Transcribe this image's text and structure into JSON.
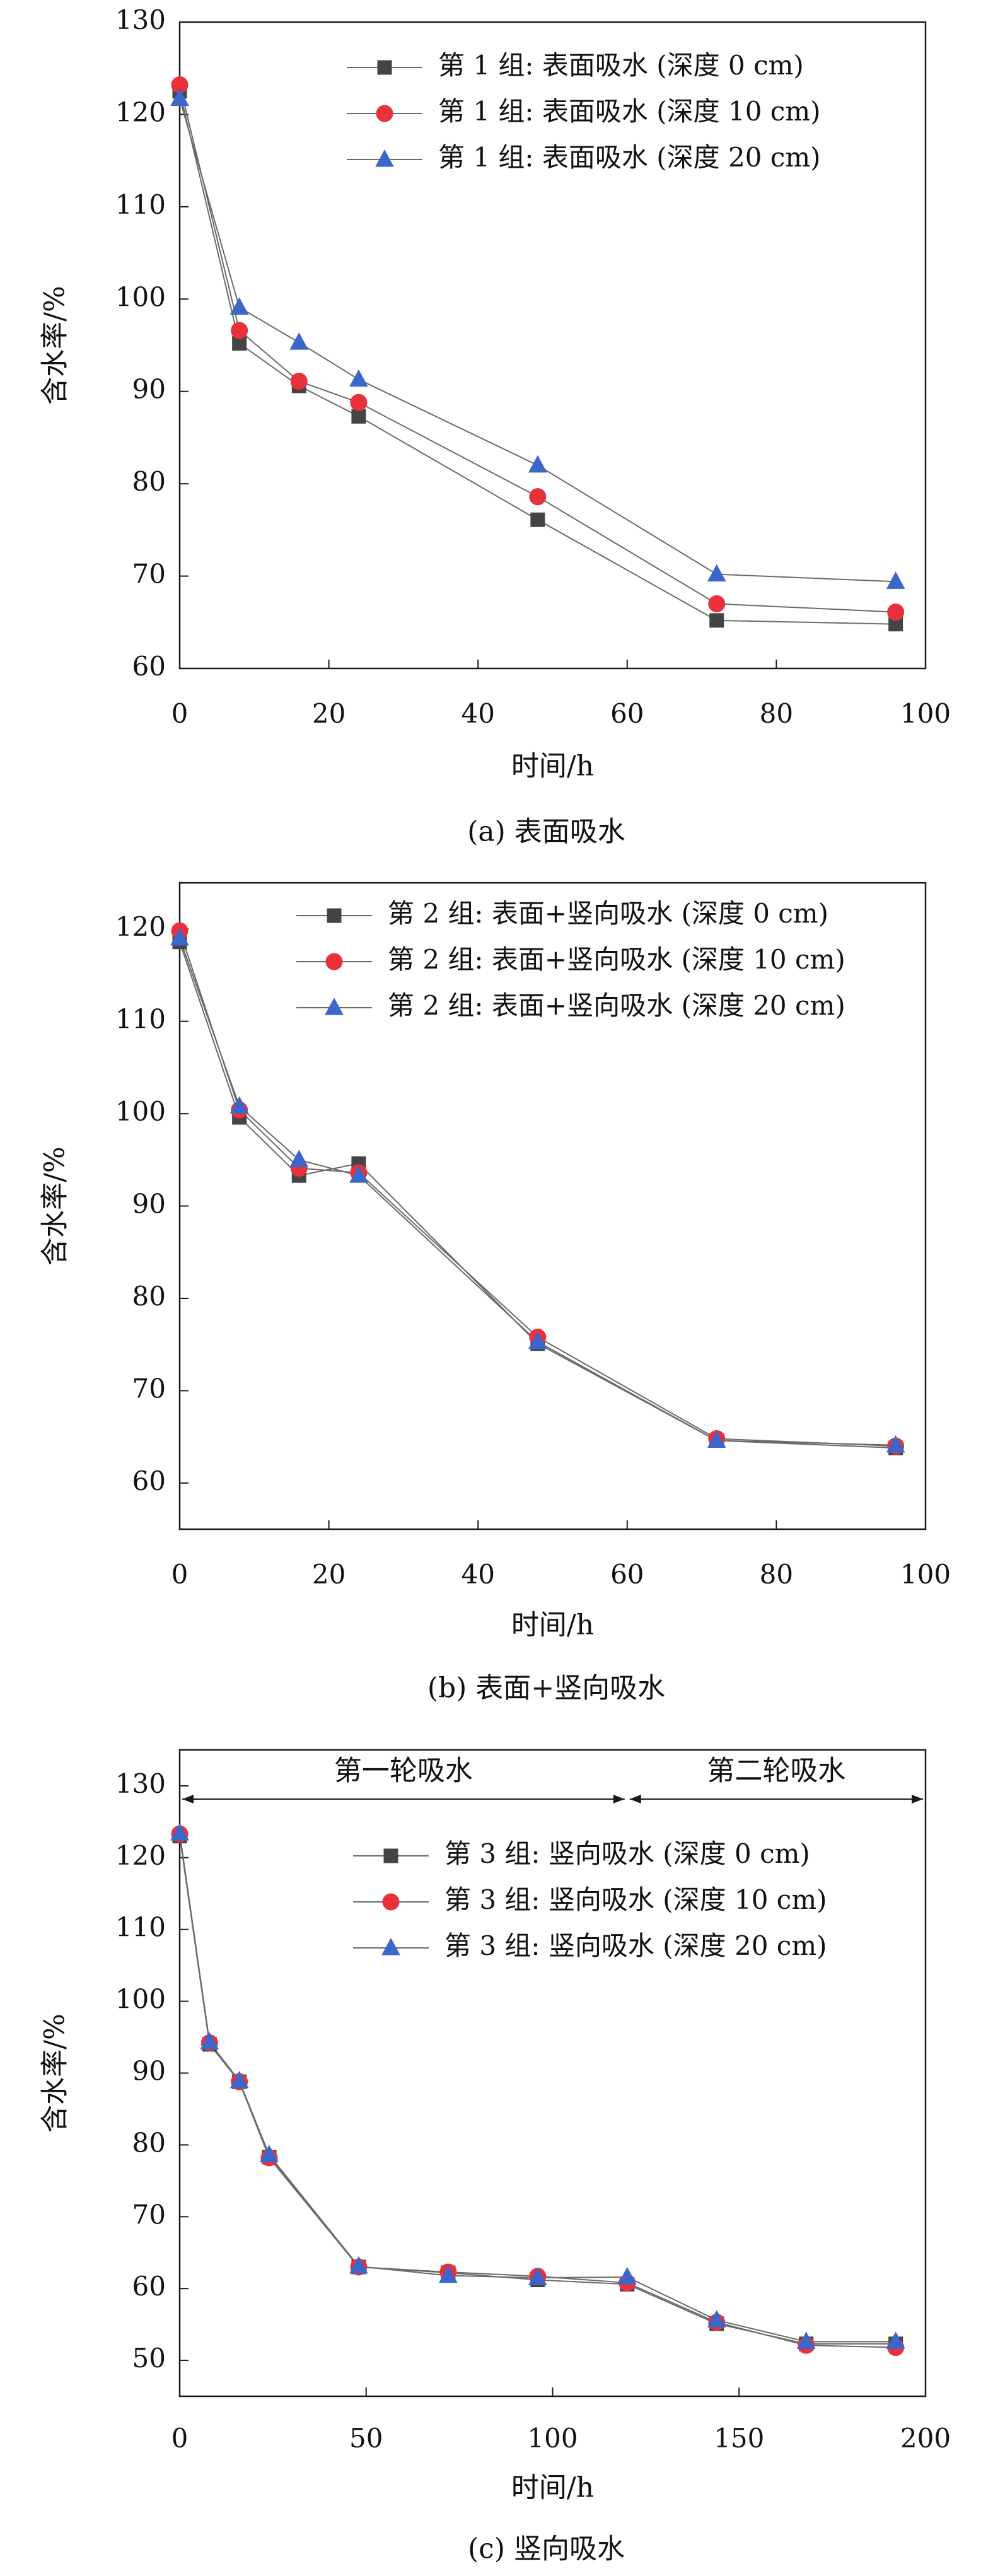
{
  "colors": {
    "series": [
      "#444444",
      "#e8313b",
      "#3a67c9"
    ],
    "line": "#6a6a6a",
    "axis": "#1a1a1a"
  },
  "chart_data": [
    {
      "type": "line",
      "caption": "(a) 表面吸水",
      "xlabel": "时间/h",
      "ylabel": "含水率/%",
      "xlim": [
        0,
        100
      ],
      "ylim": [
        60,
        130
      ],
      "xticks": [
        0,
        20,
        40,
        60,
        80,
        100
      ],
      "yticks": [
        60,
        70,
        80,
        90,
        100,
        110,
        120,
        130
      ],
      "legend_position": "top-right",
      "x": [
        0,
        8,
        16,
        24,
        48,
        72,
        96
      ],
      "series": [
        {
          "name": "第 1 组: 表面吸水 (深度 0 cm)",
          "marker": "square",
          "values": [
            122.5,
            95.2,
            90.6,
            87.3,
            76.1,
            65.2,
            64.8
          ]
        },
        {
          "name": "第 1 组: 表面吸水 (深度 10 cm)",
          "marker": "circle",
          "values": [
            123.2,
            96.6,
            91.1,
            88.8,
            78.6,
            67.0,
            66.1
          ]
        },
        {
          "name": "第 1 组: 表面吸水 (深度 20 cm)",
          "marker": "triangle",
          "values": [
            121.7,
            99.1,
            95.3,
            91.3,
            82.0,
            70.2,
            69.4
          ]
        }
      ],
      "annotations": []
    },
    {
      "type": "line",
      "caption": "(b) 表面+竖向吸水",
      "xlabel": "时间/h",
      "ylabel": "含水率/%",
      "xlim": [
        0,
        100
      ],
      "ylim": [
        55,
        125
      ],
      "xticks": [
        0,
        20,
        40,
        60,
        80,
        100
      ],
      "yticks": [
        60,
        70,
        80,
        90,
        100,
        110,
        120
      ],
      "legend_position": "top-right",
      "x": [
        0,
        8,
        16,
        24,
        48,
        72,
        96
      ],
      "series": [
        {
          "name": "第 2 组: 表面+竖向吸水 (深度 0 cm)",
          "marker": "square",
          "values": [
            118.6,
            99.6,
            93.3,
            94.6,
            75.1,
            64.6,
            63.8
          ]
        },
        {
          "name": "第 2 组: 表面+竖向吸水 (深度 10 cm)",
          "marker": "circle",
          "values": [
            119.8,
            100.4,
            94.1,
            93.6,
            75.8,
            64.8,
            64.0
          ]
        },
        {
          "name": "第 2 组: 表面+竖向吸水 (深度 20 cm)",
          "marker": "triangle",
          "values": [
            119.0,
            100.8,
            95.0,
            93.3,
            75.3,
            64.6,
            64.1
          ]
        }
      ],
      "annotations": []
    },
    {
      "type": "line",
      "caption": "(c) 竖向吸水",
      "xlabel": "时间/h",
      "ylabel": "含水率/%",
      "xlim": [
        0,
        200
      ],
      "ylim": [
        45,
        135
      ],
      "xticks": [
        0,
        50,
        100,
        150,
        200
      ],
      "yticks": [
        50,
        60,
        70,
        80,
        90,
        100,
        110,
        120,
        130
      ],
      "legend_position": "top-right",
      "x": [
        0,
        8,
        16,
        24,
        48,
        72,
        96,
        120,
        144,
        168,
        192
      ],
      "series": [
        {
          "name": "第 3 组: 竖向吸水 (深度 0 cm)",
          "marker": "square",
          "values": [
            123.0,
            94.0,
            88.8,
            78.3,
            63.0,
            62.2,
            61.2,
            60.6,
            55.1,
            52.3,
            52.3
          ]
        },
        {
          "name": "第 3 组: 竖向吸水 (深度 10 cm)",
          "marker": "circle",
          "values": [
            123.3,
            94.2,
            88.8,
            78.2,
            63.0,
            62.3,
            61.7,
            60.8,
            55.3,
            52.1,
            51.8
          ]
        },
        {
          "name": "第 3 组: 竖向吸水 (深度 20 cm)",
          "marker": "triangle",
          "values": [
            123.4,
            94.3,
            88.9,
            78.6,
            63.1,
            61.8,
            61.5,
            61.6,
            55.6,
            52.6,
            52.6
          ]
        }
      ],
      "annotations": [
        {
          "text": "第一轮吸水",
          "x_from": 0,
          "x_to": 120
        },
        {
          "text": "第二轮吸水",
          "x_from": 120,
          "x_to": 200
        }
      ]
    }
  ]
}
